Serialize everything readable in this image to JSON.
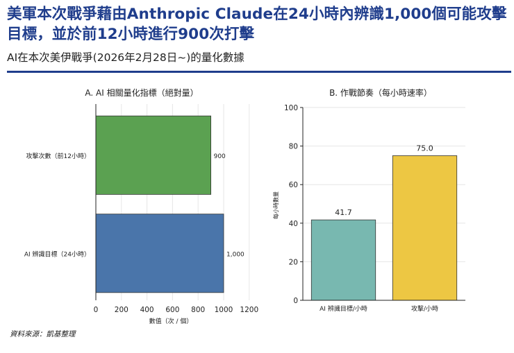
{
  "header": {
    "headline": "美軍本次戰爭藉由Anthropic Claude在24小時內辨識1,000個可能攻擊目標，並於前12小時進行900次打擊",
    "subtitle": "AI在本次美伊戰爭(2026年2月28日~)的量化數據"
  },
  "source": "資料來源：凱基整理",
  "chart_data": [
    {
      "type": "bar",
      "orientation": "horizontal",
      "title": "A. AI 相關量化指標（絕對量）",
      "xlabel": "數值（次 / 個）",
      "ylabel": "",
      "xlim": [
        0,
        1250
      ],
      "xticks": [
        0,
        200,
        400,
        600,
        800,
        1000,
        1200
      ],
      "grid": true,
      "categories": [
        "攻擊次數（前12小時）",
        "AI 辨識目標（24小時）"
      ],
      "values": [
        900,
        1000
      ],
      "value_labels": [
        "900",
        "1,000"
      ],
      "colors": [
        "#5ba151",
        "#4a75aa"
      ]
    },
    {
      "type": "bar",
      "orientation": "vertical",
      "title": "B. 作戰節奏（每小時速率）",
      "xlabel": "",
      "ylabel": "每小時數量",
      "ylim": [
        0,
        100
      ],
      "yticks": [
        0,
        20,
        40,
        60,
        80,
        100
      ],
      "grid": true,
      "categories": [
        "AI 辨識目標/小時",
        "攻擊/小時"
      ],
      "values": [
        41.7,
        75.0
      ],
      "value_labels": [
        "41.7",
        "75.0"
      ],
      "colors": [
        "#78b8b0",
        "#edc743"
      ]
    }
  ]
}
